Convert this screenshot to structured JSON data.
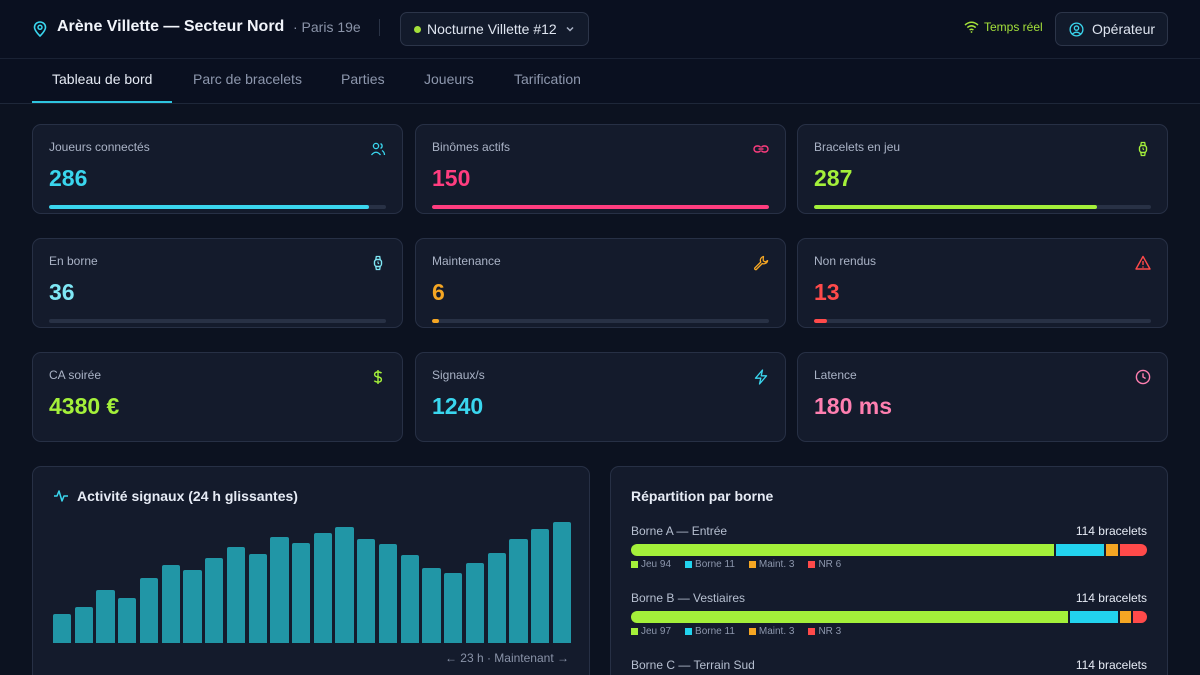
{
  "header": {
    "venue_title": "Arène Villette — Secteur Nord",
    "venue_city": "· Paris 19e",
    "session_label": "Nocturne Villette #12",
    "realtime_label": "Temps réel",
    "operator_label": "Opérateur"
  },
  "tabs": [
    {
      "label": "Tableau de bord",
      "active": true
    },
    {
      "label": "Parc de bracelets"
    },
    {
      "label": "Parties"
    },
    {
      "label": "Joueurs"
    },
    {
      "label": "Tarification"
    }
  ],
  "kpis": [
    {
      "label": "Joueurs connectés",
      "value": "286",
      "color": "#3ad6ee",
      "icon": "users-icon",
      "progress": 0.95
    },
    {
      "label": "Binômes actifs",
      "value": "150",
      "color": "#ff3d7f",
      "icon": "link-icon",
      "progress": 1.0
    },
    {
      "label": "Bracelets en jeu",
      "value": "287",
      "color": "#a4f03a",
      "icon": "watch-icon",
      "progress": 0.84
    },
    {
      "label": "En borne",
      "value": "36",
      "color": "#7fe7f5",
      "icon": "watch-icon",
      "progress": 0
    },
    {
      "label": "Maintenance",
      "value": "6",
      "color": "#f5a623",
      "icon": "wrench-icon",
      "progress": 0.02
    },
    {
      "label": "Non rendus",
      "value": "13",
      "color": "#ff4a4a",
      "icon": "alert-icon",
      "progress": 0.04
    },
    {
      "label": "CA soirée",
      "value": "4380 €",
      "color": "#a4f03a",
      "icon": "dollar-icon"
    },
    {
      "label": "Signaux/s",
      "value": "1240",
      "color": "#3ad6ee",
      "icon": "bolt-icon"
    },
    {
      "label": "Latence",
      "value": "180 ms",
      "color": "#ff7fb0",
      "icon": "clock-icon"
    }
  ],
  "activity": {
    "title": "Activité signaux (24 h glissantes)",
    "axis_note": "← 23 h · Maintenant →",
    "chart_data": {
      "type": "bar",
      "values": [
        29,
        35,
        52,
        44,
        64,
        77,
        72,
        84,
        94,
        88,
        104,
        98,
        108,
        114,
        102,
        97,
        87,
        74,
        69,
        79,
        89,
        102,
        112,
        119
      ],
      "color": "#2196a6"
    }
  },
  "distribution": {
    "title": "Répartition par borne",
    "colors": {
      "jeu": "#a4f03a",
      "borne": "#22d3ee",
      "maint": "#f5a623",
      "nr": "#ff4a4a"
    },
    "rows": [
      {
        "name": "Borne A — Entrée",
        "total": "114 bracelets",
        "jeu": 94,
        "borne": 11,
        "maint": 3,
        "nr": 6,
        "legend": [
          "Jeu 94",
          "Borne 11",
          "Maint. 3",
          "NR 6"
        ]
      },
      {
        "name": "Borne B — Vestiaires",
        "total": "114 bracelets",
        "jeu": 97,
        "borne": 11,
        "maint": 3,
        "nr": 3,
        "legend": [
          "Jeu 97",
          "Borne 11",
          "Maint. 3",
          "NR 3"
        ]
      },
      {
        "name": "Borne C — Terrain Sud",
        "total": "114 bracelets"
      }
    ]
  }
}
